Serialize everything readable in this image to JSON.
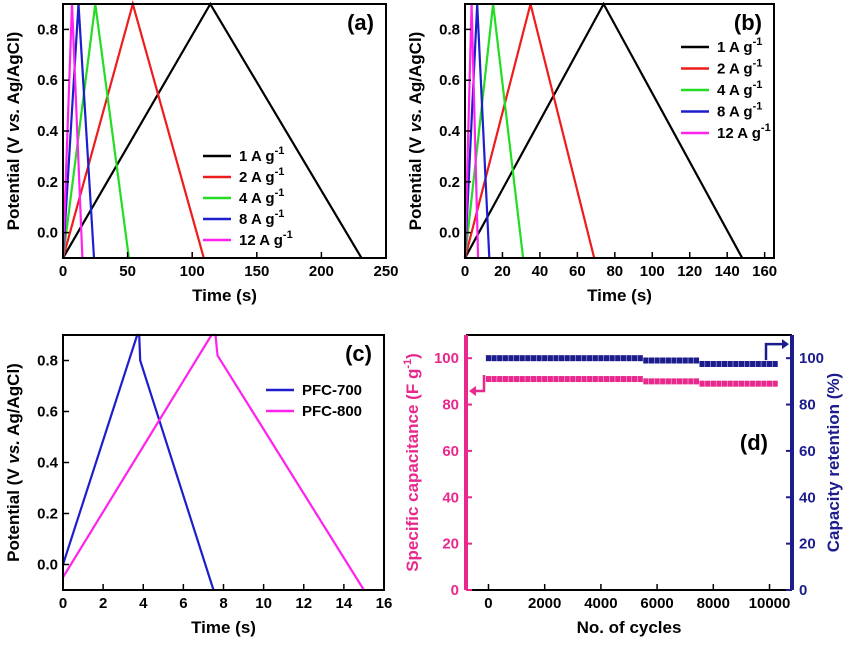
{
  "colors": {
    "black": "#000000",
    "red": "#ee1c1c",
    "green": "#22dd22",
    "blue": "#1e1ecc",
    "magenta": "#ff22ee",
    "pink": "#e8288c",
    "navy": "#1c1c8c"
  },
  "chart_data": [
    {
      "panel": "(a)",
      "type": "line",
      "xlabel": "Time (s)",
      "ylabel": "Potential (V vs. Ag/AgCl)",
      "xlim": [
        0,
        250
      ],
      "ylim": [
        -0.1,
        0.9
      ],
      "xticks": [
        0,
        50,
        100,
        150,
        200,
        250
      ],
      "yticks": [
        0.0,
        0.2,
        0.4,
        0.6,
        0.8
      ],
      "legend_position": "bottom-right",
      "series": [
        {
          "name": "1 A g-1",
          "color": "black",
          "x": [
            0,
            114,
            231
          ],
          "y": [
            -0.1,
            0.9,
            -0.1
          ]
        },
        {
          "name": "2 A g-1",
          "color": "red",
          "x": [
            0,
            54,
            109
          ],
          "y": [
            -0.1,
            0.9,
            -0.1
          ]
        },
        {
          "name": "4 A g-1",
          "color": "green",
          "x": [
            0,
            25,
            51
          ],
          "y": [
            -0.1,
            0.9,
            -0.1
          ]
        },
        {
          "name": "8 A g-1",
          "color": "blue",
          "x": [
            0,
            12,
            24
          ],
          "y": [
            -0.1,
            0.9,
            -0.1
          ]
        },
        {
          "name": "12 A g-1",
          "color": "magenta",
          "x": [
            0,
            7,
            15
          ],
          "y": [
            -0.1,
            0.9,
            -0.1
          ]
        }
      ]
    },
    {
      "panel": "(b)",
      "type": "line",
      "xlabel": "Time (s)",
      "ylabel": "Potential (V vs. Ag/AgCl)",
      "xlim": [
        0,
        165
      ],
      "ylim": [
        -0.1,
        0.9
      ],
      "xticks": [
        0,
        20,
        40,
        60,
        80,
        100,
        120,
        140,
        160
      ],
      "yticks": [
        0.0,
        0.2,
        0.4,
        0.6,
        0.8
      ],
      "legend_position": "top-right",
      "series": [
        {
          "name": "1 A g-1",
          "color": "black",
          "x": [
            0,
            74,
            148
          ],
          "y": [
            -0.1,
            0.9,
            -0.1
          ]
        },
        {
          "name": "2 A g-1",
          "color": "red",
          "x": [
            0,
            35,
            69
          ],
          "y": [
            -0.1,
            0.9,
            -0.1
          ]
        },
        {
          "name": "4 A g-1",
          "color": "green",
          "x": [
            0,
            15,
            31
          ],
          "y": [
            -0.1,
            0.9,
            -0.1
          ]
        },
        {
          "name": "8 A g-1",
          "color": "blue",
          "x": [
            0,
            6.5,
            13
          ],
          "y": [
            -0.1,
            0.9,
            -0.1
          ]
        },
        {
          "name": "12 A g-1",
          "color": "magenta",
          "x": [
            0,
            3.5,
            7
          ],
          "y": [
            -0.1,
            0.9,
            -0.1
          ]
        }
      ]
    },
    {
      "panel": "(c)",
      "type": "line",
      "xlabel": "Time (s)",
      "ylabel": "Potential (V vs. Ag/AgCl)",
      "xlim": [
        0,
        16
      ],
      "ylim": [
        -0.1,
        0.9
      ],
      "xticks": [
        0,
        2,
        4,
        6,
        8,
        10,
        12,
        14,
        16
      ],
      "yticks": [
        0.0,
        0.2,
        0.4,
        0.6,
        0.8
      ],
      "legend_position": "top-right",
      "series": [
        {
          "name": "PFC-700",
          "color": "blue",
          "x": [
            0,
            3.7,
            3.8,
            3.85,
            7.5
          ],
          "y": [
            0.0,
            0.9,
            0.9,
            0.8,
            -0.1
          ]
        },
        {
          "name": "PFC-800",
          "color": "magenta",
          "x": [
            0,
            7.4,
            7.6,
            7.7,
            15.0
          ],
          "y": [
            -0.05,
            0.9,
            0.9,
            0.82,
            -0.1
          ]
        }
      ]
    },
    {
      "panel": "(d)",
      "type": "scatter",
      "xlabel": "No. of cycles",
      "ylabel": "Specific capacitance (F g-1)",
      "ylabel_right": "Capacity retention (%)",
      "xlim": [
        -800,
        10800
      ],
      "ylim": [
        0,
        110
      ],
      "ylim_right": [
        0,
        110
      ],
      "xticks": [
        0,
        2000,
        4000,
        6000,
        8000,
        10000
      ],
      "yticks": [
        0,
        20,
        40,
        60,
        80,
        100
      ],
      "yticks_right": [
        0,
        20,
        40,
        60,
        80,
        100
      ],
      "series": [
        {
          "name": "Specific capacitance",
          "color": "pink",
          "axis": "left",
          "x_start": 0,
          "x_end": 10200,
          "count": 52,
          "segments": [
            {
              "from": 0,
              "to": 5500,
              "y": 91
            },
            {
              "from": 5500,
              "to": 7600,
              "y": 90
            },
            {
              "from": 7600,
              "to": 10200,
              "y": 89
            }
          ]
        },
        {
          "name": "Capacity retention",
          "color": "navy",
          "axis": "right",
          "x_start": 0,
          "x_end": 10200,
          "count": 52,
          "segments": [
            {
              "from": 0,
              "to": 5500,
              "y": 100
            },
            {
              "from": 5500,
              "to": 7600,
              "y": 99
            },
            {
              "from": 7600,
              "to": 10200,
              "y": 97.5
            }
          ]
        }
      ]
    }
  ]
}
